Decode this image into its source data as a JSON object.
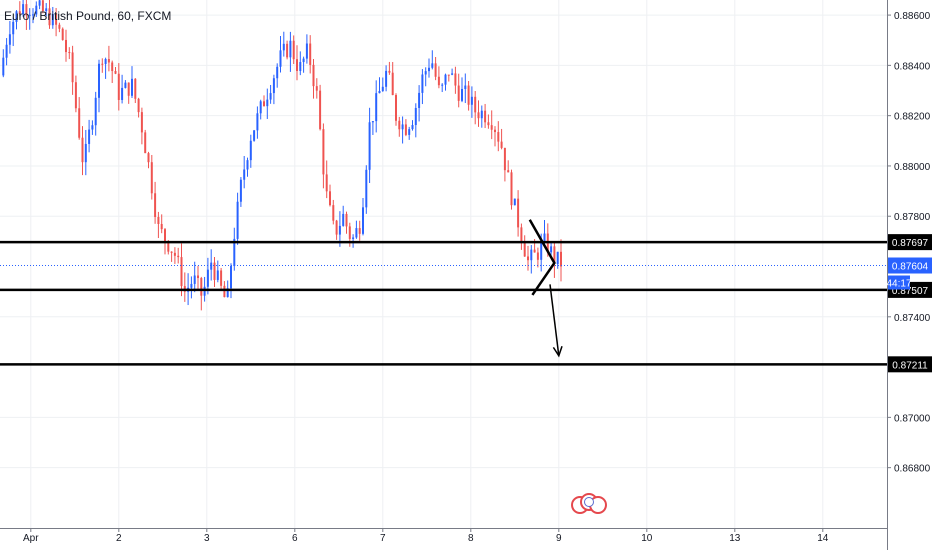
{
  "chart_data": {
    "type": "candlestick",
    "title": "Euro / British Pound, 60, FXCM",
    "xlim": [
      0,
      16
    ],
    "ylim": [
      0.8656,
      0.8866
    ],
    "x_ticks": [
      {
        "label": "Apr",
        "x": 0.35
      },
      {
        "label": "2",
        "x": 1.35
      },
      {
        "label": "3",
        "x": 2.35
      },
      {
        "label": "6",
        "x": 3.35
      },
      {
        "label": "7",
        "x": 4.35
      },
      {
        "label": "8",
        "x": 5.35
      },
      {
        "label": "9",
        "x": 6.35
      },
      {
        "label": "10",
        "x": 7.35
      },
      {
        "label": "13",
        "x": 8.35
      },
      {
        "label": "14",
        "x": 9.35
      }
    ],
    "y_ticks": [
      "0.88600",
      "0.88400",
      "0.88200",
      "0.88000",
      "0.87800",
      "0.87400",
      "0.87000",
      "0.86800"
    ],
    "horizontal_levels": [
      {
        "value": 0.87697,
        "label": "0.87697"
      },
      {
        "value": 0.87507,
        "label": "0.87507"
      },
      {
        "value": 0.87211,
        "label": "0.87211"
      }
    ],
    "current_price": {
      "value": 0.87604,
      "label": "0.87604",
      "countdown": "44:17"
    },
    "candle_path": [
      [
        0.0,
        0.8836
      ],
      [
        0.1,
        0.8855
      ],
      [
        0.25,
        0.8864
      ],
      [
        0.45,
        0.8862
      ],
      [
        0.55,
        0.886
      ],
      [
        0.7,
        0.8852
      ],
      [
        0.8,
        0.884
      ],
      [
        0.95,
        0.88
      ],
      [
        1.05,
        0.882
      ],
      [
        1.15,
        0.8845
      ],
      [
        1.25,
        0.8841
      ],
      [
        1.35,
        0.8829
      ],
      [
        1.5,
        0.8832
      ],
      [
        1.6,
        0.8818
      ],
      [
        1.7,
        0.8798
      ],
      [
        1.8,
        0.8775
      ],
      [
        1.9,
        0.877
      ],
      [
        2.0,
        0.8764
      ],
      [
        2.1,
        0.875
      ],
      [
        2.2,
        0.8755
      ],
      [
        2.3,
        0.8748
      ],
      [
        2.4,
        0.8762
      ],
      [
        2.5,
        0.8752
      ],
      [
        2.58,
        0.8745
      ],
      [
        2.65,
        0.877
      ],
      [
        2.75,
        0.8795
      ],
      [
        2.85,
        0.8812
      ],
      [
        3.0,
        0.8826
      ],
      [
        3.1,
        0.8835
      ],
      [
        3.2,
        0.8844
      ],
      [
        3.3,
        0.8848
      ],
      [
        3.4,
        0.8838
      ],
      [
        3.5,
        0.8846
      ],
      [
        3.6,
        0.8828
      ],
      [
        3.7,
        0.879
      ],
      [
        3.8,
        0.8773
      ],
      [
        3.9,
        0.878
      ],
      [
        4.0,
        0.877
      ],
      [
        4.1,
        0.8778
      ],
      [
        4.2,
        0.8816
      ],
      [
        4.3,
        0.8828
      ],
      [
        4.4,
        0.8838
      ],
      [
        4.5,
        0.882
      ],
      [
        4.6,
        0.8815
      ],
      [
        4.7,
        0.882
      ],
      [
        4.8,
        0.8835
      ],
      [
        4.9,
        0.8843
      ],
      [
        5.0,
        0.8828
      ],
      [
        5.1,
        0.8838
      ],
      [
        5.2,
        0.883
      ],
      [
        5.3,
        0.8828
      ],
      [
        5.4,
        0.8822
      ],
      [
        5.5,
        0.8821
      ],
      [
        5.6,
        0.8818
      ],
      [
        5.7,
        0.8808
      ],
      [
        5.8,
        0.879
      ],
      [
        5.9,
        0.8776
      ],
      [
        6.0,
        0.8762
      ],
      [
        6.1,
        0.8765
      ],
      [
        6.2,
        0.877
      ],
      [
        6.3,
        0.8763
      ],
      [
        6.4,
        0.8761
      ]
    ],
    "drawing": {
      "triangle": [
        [
          6.02,
          0.87786
        ],
        [
          6.3,
          0.87614
        ],
        [
          6.05,
          0.87487
        ]
      ],
      "arrow_from": [
        6.25,
        0.87529
      ],
      "arrow_to": [
        6.35,
        0.87245
      ]
    }
  }
}
